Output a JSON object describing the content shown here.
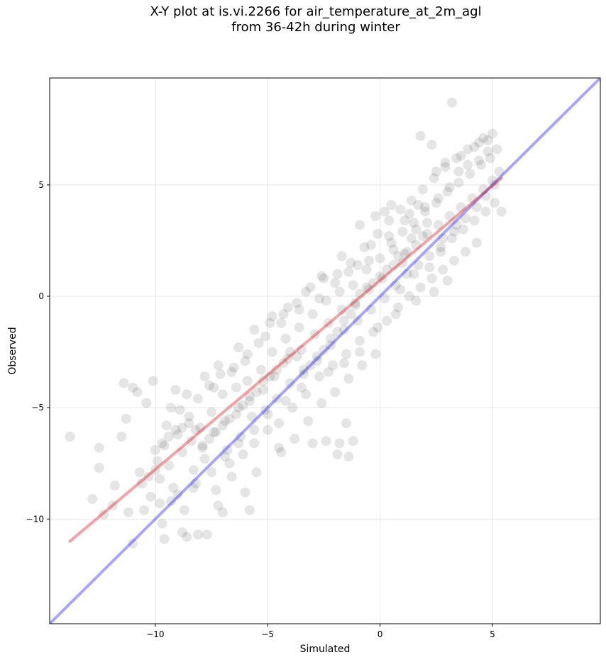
{
  "chart_data": {
    "type": "scatter",
    "title_line1": "X-Y plot at is.vi.2266 for air_temperature_at_2m_agl",
    "title_line2": "from 36-42h during winter",
    "xlabel": "Simulated",
    "ylabel": "Observed",
    "xlim": [
      -14.7,
      9.8
    ],
    "ylim": [
      -14.7,
      9.8
    ],
    "xticks": [
      -10,
      -5,
      0,
      5
    ],
    "yticks": [
      -10,
      -5,
      0,
      5
    ],
    "xtick_labels": [
      "−10",
      "−5",
      "0",
      "5"
    ],
    "ytick_labels": [
      "−10",
      "−5",
      "0",
      "5"
    ],
    "grid": true,
    "point_color": "#000000",
    "point_alpha": 0.1,
    "regression_line": {
      "color": "#e41a1c",
      "x": [
        -13.8,
        5.4
      ],
      "y": [
        -11.0,
        5.3
      ]
    },
    "identity_line": {
      "color": "#0000ff",
      "x": [
        -14.7,
        9.8
      ],
      "y": [
        -14.7,
        9.8
      ]
    },
    "points": [
      [
        -13.8,
        -6.3
      ],
      [
        -12.5,
        -6.8
      ],
      [
        -12.5,
        -7.7
      ],
      [
        -12.8,
        -9.1
      ],
      [
        -12.3,
        -9.8
      ],
      [
        -11.9,
        -9.4
      ],
      [
        -11.8,
        -8.5
      ],
      [
        -11.5,
        -6.3
      ],
      [
        -11.3,
        -5.5
      ],
      [
        -11.2,
        -9.7
      ],
      [
        -11.0,
        -11.1
      ],
      [
        -11.4,
        -3.9
      ],
      [
        -11.0,
        -4.1
      ],
      [
        -10.8,
        -4.3
      ],
      [
        -10.7,
        -7.9
      ],
      [
        -10.4,
        -4.8
      ],
      [
        -10.2,
        -9.0
      ],
      [
        -10.1,
        -3.8
      ],
      [
        -10.0,
        -6.9
      ],
      [
        -9.9,
        -7.4
      ],
      [
        -9.8,
        -8.2
      ],
      [
        -9.7,
        -10.2
      ],
      [
        -9.6,
        -6.7
      ],
      [
        -9.5,
        -5.8
      ],
      [
        -9.4,
        -7.6
      ],
      [
        -9.3,
        -9.2
      ],
      [
        -9.2,
        -8.6
      ],
      [
        -9.1,
        -4.2
      ],
      [
        -9.0,
        -6.2
      ],
      [
        -8.9,
        -5.1
      ],
      [
        -8.8,
        -7.0
      ],
      [
        -8.7,
        -9.6
      ],
      [
        -8.6,
        -10.8
      ],
      [
        -8.5,
        -5.4
      ],
      [
        -8.4,
        -6.5
      ],
      [
        -8.3,
        -7.8
      ],
      [
        -8.2,
        -8.4
      ],
      [
        -8.1,
        -4.6
      ],
      [
        -8.0,
        -5.9
      ],
      [
        -7.9,
        -6.8
      ],
      [
        -7.8,
        -7.3
      ],
      [
        -7.7,
        -10.7
      ],
      [
        -7.6,
        -4.0
      ],
      [
        -7.5,
        -5.2
      ],
      [
        -7.4,
        -6.1
      ],
      [
        -7.3,
        -8.7
      ],
      [
        -7.2,
        -9.4
      ],
      [
        -7.1,
        -3.5
      ],
      [
        -7.0,
        -4.4
      ],
      [
        -6.9,
        -5.6
      ],
      [
        -6.8,
        -6.9
      ],
      [
        -6.7,
        -7.5
      ],
      [
        -6.6,
        -8.1
      ],
      [
        -6.5,
        -3.2
      ],
      [
        -6.4,
        -4.1
      ],
      [
        -6.3,
        -5.0
      ],
      [
        -6.2,
        -6.3
      ],
      [
        -6.1,
        -7.1
      ],
      [
        -6.0,
        -2.9
      ],
      [
        -5.9,
        -3.8
      ],
      [
        -5.8,
        -4.5
      ],
      [
        -5.7,
        -5.4
      ],
      [
        -5.6,
        -6.6
      ],
      [
        -5.5,
        -7.9
      ],
      [
        -5.4,
        -2.1
      ],
      [
        -5.3,
        -3.3
      ],
      [
        -5.2,
        -4.2
      ],
      [
        -5.1,
        -5.1
      ],
      [
        -5.0,
        -6.0
      ],
      [
        -4.9,
        -1.2
      ],
      [
        -4.8,
        -2.5
      ],
      [
        -4.7,
        -3.6
      ],
      [
        -4.6,
        -4.6
      ],
      [
        -4.5,
        -5.7
      ],
      [
        -4.4,
        -7.0
      ],
      [
        -4.3,
        -0.8
      ],
      [
        -4.2,
        -1.9
      ],
      [
        -4.1,
        -2.8
      ],
      [
        -4.0,
        -3.9
      ],
      [
        -3.9,
        -5.0
      ],
      [
        -3.8,
        -6.4
      ],
      [
        -3.7,
        -0.3
      ],
      [
        -3.6,
        -1.4
      ],
      [
        -3.5,
        -2.4
      ],
      [
        -3.4,
        -3.3
      ],
      [
        -3.3,
        -4.4
      ],
      [
        -3.2,
        -5.6
      ],
      [
        -3.1,
        0.4
      ],
      [
        -3.0,
        -0.8
      ],
      [
        -2.9,
        -1.7
      ],
      [
        -2.8,
        -2.7
      ],
      [
        -2.7,
        -3.6
      ],
      [
        -2.6,
        -4.8
      ],
      [
        -2.5,
        0.8
      ],
      [
        -2.4,
        -0.2
      ],
      [
        -2.3,
        -1.2
      ],
      [
        -2.2,
        -2.2
      ],
      [
        -2.1,
        -3.1
      ],
      [
        -2.0,
        -4.3
      ],
      [
        -1.9,
        1.0
      ],
      [
        -1.8,
        0.2
      ],
      [
        -1.7,
        -0.6
      ],
      [
        -1.6,
        -1.5
      ],
      [
        -1.5,
        -2.6
      ],
      [
        -1.4,
        -3.7
      ],
      [
        -1.3,
        1.5
      ],
      [
        -1.2,
        0.5
      ],
      [
        -1.1,
        -0.3
      ],
      [
        -1.0,
        -1.1
      ],
      [
        -0.9,
        -2.0
      ],
      [
        -0.8,
        -3.1
      ],
      [
        -0.7,
        2.2
      ],
      [
        -0.6,
        1.2
      ],
      [
        -0.5,
        0.3
      ],
      [
        -0.4,
        -0.6
      ],
      [
        -0.3,
        -1.6
      ],
      [
        -0.2,
        -2.6
      ],
      [
        -0.1,
        2.8
      ],
      [
        0.0,
        1.7
      ],
      [
        0.1,
        0.8
      ],
      [
        0.2,
        -0.1
      ],
      [
        0.3,
        -1.1
      ],
      [
        0.4,
        3.4
      ],
      [
        0.5,
        2.4
      ],
      [
        0.6,
        1.4
      ],
      [
        0.7,
        0.5
      ],
      [
        0.8,
        -0.5
      ],
      [
        0.9,
        3.9
      ],
      [
        1.0,
        2.9
      ],
      [
        1.1,
        1.9
      ],
      [
        1.2,
        1.0
      ],
      [
        1.3,
        0.0
      ],
      [
        1.4,
        4.3
      ],
      [
        1.5,
        3.3
      ],
      [
        1.6,
        2.3
      ],
      [
        1.7,
        1.4
      ],
      [
        1.8,
        0.4
      ],
      [
        1.9,
        4.8
      ],
      [
        2.0,
        3.8
      ],
      [
        2.1,
        2.8
      ],
      [
        2.2,
        1.8
      ],
      [
        2.3,
        0.8
      ],
      [
        2.4,
        5.3
      ],
      [
        2.5,
        4.2
      ],
      [
        2.6,
        3.2
      ],
      [
        2.7,
        2.2
      ],
      [
        2.8,
        1.2
      ],
      [
        2.9,
        5.8
      ],
      [
        3.0,
        4.7
      ],
      [
        3.1,
        3.6
      ],
      [
        3.2,
        2.6
      ],
      [
        3.3,
        1.6
      ],
      [
        3.4,
        6.2
      ],
      [
        3.5,
        5.1
      ],
      [
        3.6,
        4.0
      ],
      [
        3.7,
        3.0
      ],
      [
        3.8,
        2.0
      ],
      [
        3.9,
        6.6
      ],
      [
        4.0,
        5.5
      ],
      [
        4.1,
        4.4
      ],
      [
        4.2,
        3.4
      ],
      [
        4.3,
        2.4
      ],
      [
        4.4,
        6.9
      ],
      [
        4.5,
        5.9
      ],
      [
        4.6,
        4.8
      ],
      [
        4.7,
        3.8
      ],
      [
        4.8,
        7.0
      ],
      [
        4.9,
        6.2
      ],
      [
        5.0,
        5.2
      ],
      [
        5.1,
        4.2
      ],
      [
        5.2,
        6.6
      ],
      [
        5.3,
        5.6
      ],
      [
        5.4,
        3.8
      ],
      [
        3.2,
        8.7
      ],
      [
        1.8,
        7.2
      ],
      [
        2.3,
        6.8
      ],
      [
        -3.0,
        -6.6
      ],
      [
        -1.5,
        -5.7
      ],
      [
        -1.2,
        -6.5
      ],
      [
        -1.9,
        -7.1
      ],
      [
        -6.0,
        -8.8
      ],
      [
        -5.8,
        -9.6
      ],
      [
        -8.1,
        -10.7
      ],
      [
        -8.8,
        -10.6
      ],
      [
        -9.6,
        -10.9
      ],
      [
        -4.5,
        -6.8
      ],
      [
        -7.0,
        -9.7
      ],
      [
        -2.4,
        -6.5
      ],
      [
        -1.8,
        -6.6
      ],
      [
        -1.4,
        -7.2
      ],
      [
        0.5,
        4.1
      ],
      [
        0.2,
        3.8
      ],
      [
        -0.2,
        3.6
      ],
      [
        -0.9,
        3.2
      ],
      [
        2.5,
        5.6
      ],
      [
        2.9,
        6.0
      ],
      [
        3.6,
        6.3
      ],
      [
        4.2,
        6.7
      ],
      [
        4.6,
        7.1
      ],
      [
        5.0,
        7.3
      ],
      [
        1.0,
        1.5
      ],
      [
        1.2,
        2.0
      ],
      [
        0.8,
        1.8
      ],
      [
        1.4,
        2.6
      ],
      [
        1.6,
        3.0
      ],
      [
        1.9,
        2.7
      ],
      [
        2.1,
        3.3
      ],
      [
        0.6,
        2.1
      ],
      [
        0.3,
        1.2
      ],
      [
        0.0,
        0.9
      ],
      [
        -0.3,
        0.6
      ],
      [
        -0.6,
        0.4
      ],
      [
        -0.9,
        0.1
      ],
      [
        -1.1,
        -0.4
      ],
      [
        -1.3,
        -0.8
      ],
      [
        -1.6,
        -1.1
      ],
      [
        -1.9,
        -1.6
      ],
      [
        -2.2,
        -1.9
      ],
      [
        -2.5,
        -2.4
      ],
      [
        -2.8,
        -2.9
      ],
      [
        -3.1,
        -3.1
      ],
      [
        -3.4,
        -3.5
      ],
      [
        -3.7,
        -2.7
      ],
      [
        -4.0,
        -2.5
      ],
      [
        -4.3,
        -3.0
      ],
      [
        -4.6,
        -3.3
      ],
      [
        -4.9,
        -3.6
      ],
      [
        -5.2,
        -3.8
      ],
      [
        -5.5,
        -4.3
      ],
      [
        -5.8,
        -4.7
      ],
      [
        -6.1,
        -4.9
      ],
      [
        -6.4,
        -5.3
      ],
      [
        -6.7,
        -5.5
      ],
      [
        -7.0,
        -5.8
      ],
      [
        -7.3,
        -6.1
      ],
      [
        -7.6,
        -6.4
      ],
      [
        -7.9,
        -6.7
      ],
      [
        -8.2,
        -6.0
      ],
      [
        -8.5,
        -5.7
      ],
      [
        -8.8,
        -5.9
      ],
      [
        -9.1,
        -6.0
      ],
      [
        -9.4,
        -6.3
      ],
      [
        -9.7,
        -6.6
      ],
      [
        -10.0,
        -7.8
      ],
      [
        -10.3,
        -8.1
      ],
      [
        -10.6,
        -8.4
      ],
      [
        -1.0,
        1.4
      ],
      [
        1.5,
        1.0
      ],
      [
        2.2,
        1.3
      ],
      [
        2.7,
        2.0
      ],
      [
        3.3,
        2.9
      ],
      [
        3.8,
        3.5
      ],
      [
        4.3,
        4.0
      ],
      [
        4.7,
        4.5
      ],
      [
        5.1,
        5.0
      ],
      [
        2.0,
        4.0
      ],
      [
        1.1,
        3.4
      ],
      [
        0.4,
        2.7
      ],
      [
        -0.4,
        2.3
      ],
      [
        -1.7,
        1.8
      ],
      [
        -2.6,
        0.9
      ],
      [
        -3.3,
        0.2
      ],
      [
        -4.1,
        -0.5
      ],
      [
        -4.8,
        -0.9
      ],
      [
        -5.6,
        -1.5
      ],
      [
        -6.3,
        -2.3
      ],
      [
        -7.2,
        -3.1
      ],
      [
        -7.8,
        -3.6
      ],
      [
        -8.6,
        -4.4
      ],
      [
        -9.3,
        -5.0
      ],
      [
        0.9,
        0.3
      ],
      [
        1.6,
        -0.2
      ],
      [
        2.4,
        0.2
      ],
      [
        3.0,
        0.7
      ],
      [
        0.7,
        -0.8
      ],
      [
        -0.1,
        -1.4
      ],
      [
        -0.9,
        -2.5
      ],
      [
        -1.6,
        -3.0
      ],
      [
        -2.3,
        -3.4
      ],
      [
        -3.5,
        -4.1
      ],
      [
        -4.2,
        -4.7
      ],
      [
        -5.0,
        -5.3
      ],
      [
        -5.6,
        -6.0
      ],
      [
        -6.3,
        -6.6
      ],
      [
        -6.9,
        -7.2
      ],
      [
        -7.5,
        -7.9
      ],
      [
        -8.3,
        -8.6
      ],
      [
        -9.0,
        -8.9
      ],
      [
        -9.8,
        -9.3
      ],
      [
        -10.5,
        -9.6
      ],
      [
        1.3,
        3.7
      ],
      [
        1.7,
        4.1
      ],
      [
        2.6,
        4.4
      ],
      [
        3.1,
        4.9
      ],
      [
        3.5,
        5.6
      ],
      [
        3.9,
        5.9
      ],
      [
        4.4,
        6.1
      ],
      [
        4.8,
        6.5
      ],
      [
        2.8,
        2.6
      ],
      [
        3.4,
        3.2
      ],
      [
        -0.5,
        1.6
      ],
      [
        -1.4,
        1.1
      ],
      [
        -2.0,
        0.6
      ],
      [
        -2.7,
        -0.1
      ],
      [
        -3.6,
        -0.6
      ],
      [
        -4.4,
        -1.2
      ],
      [
        -5.1,
        -1.8
      ],
      [
        -5.9,
        -2.6
      ],
      [
        -6.6,
        -3.4
      ],
      [
        -7.4,
        -4.1
      ]
    ]
  }
}
